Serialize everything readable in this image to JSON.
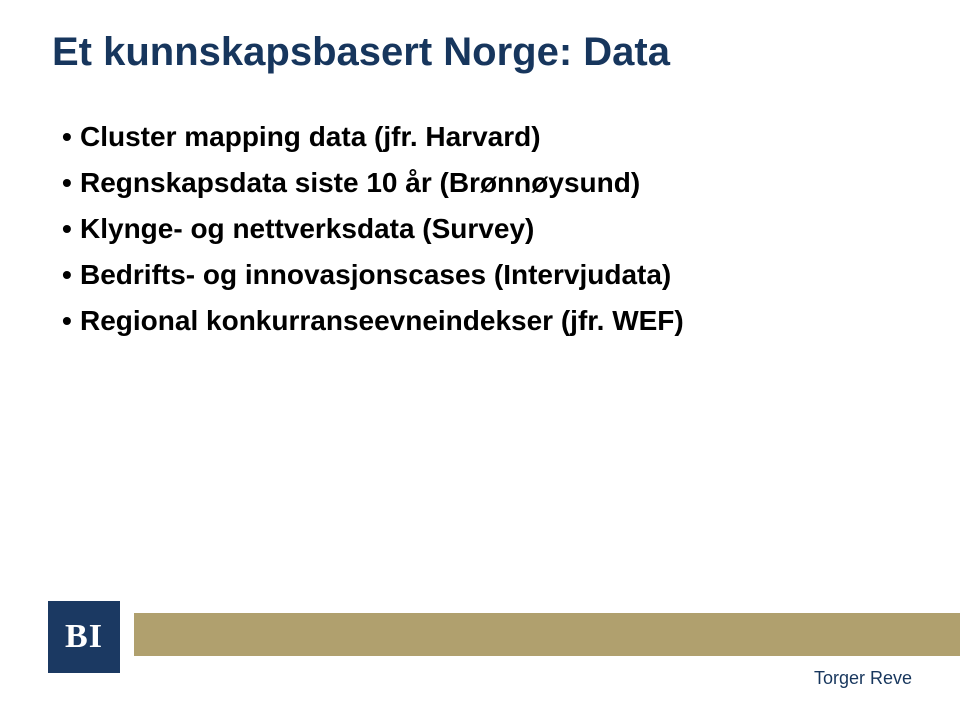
{
  "slide": {
    "title": "Et kunnskapsbasert Norge: Data",
    "title_color": "#17365d",
    "title_fontsize": 40,
    "bullets": [
      "Cluster mapping data (jfr. Harvard)",
      "Regnskapsdata siste 10 år (Brønnøysund)",
      "Klynge- og nettverksdata (Survey)",
      "Bedrifts- og innovasjonscases (Intervjudata)",
      "Regional konkurranseevneindekser (jfr. WEF)"
    ],
    "bullet_fontsize": 28,
    "bullet_color": "#000000",
    "background_color": "#ffffff",
    "band_color": "#b0a06e"
  },
  "logo": {
    "text": "BI",
    "bg_color": "#1b3962",
    "text_color": "#ffffff"
  },
  "presenter": {
    "name": "Torger Reve",
    "color": "#17365d",
    "fontsize": 18
  }
}
